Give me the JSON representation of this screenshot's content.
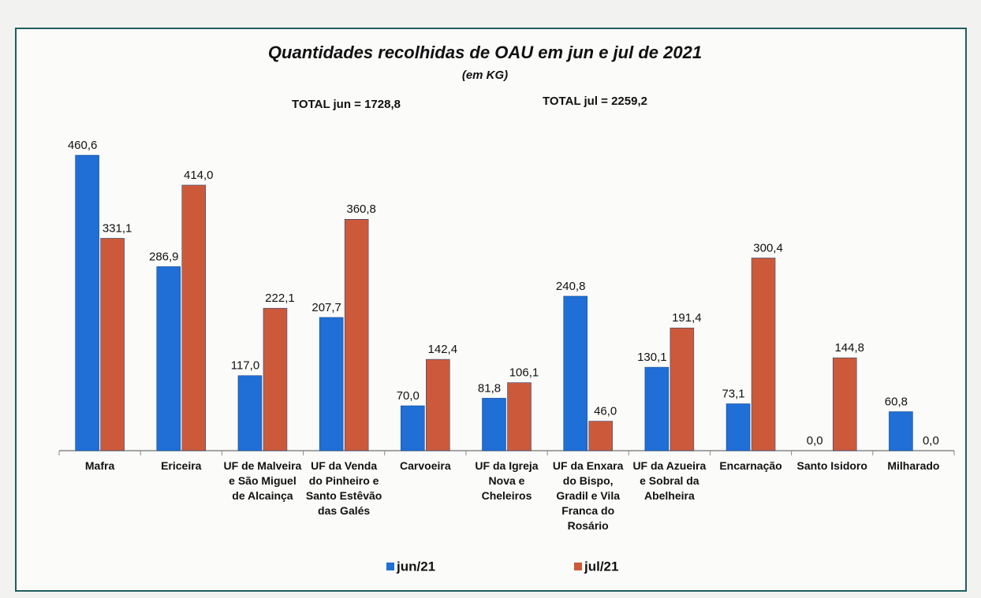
{
  "chart_data": {
    "type": "bar",
    "title": "Quantidades recolhidas de OAU em jun e jul de 2021",
    "subtitle": "(em KG)",
    "annotations": [
      "TOTAL jun = 1728,8",
      "TOTAL jul = 2259,2"
    ],
    "categories": [
      "Mafra",
      "Ericeira",
      "UF de Malveira e São Miguel de Alcainça",
      "UF da Venda do Pinheiro e Santo Estêvão das Galés",
      "Carvoeira",
      "UF da Igreja Nova e Cheleiros",
      "UF da Enxara do Bispo, Gradil e Vila Franca do Rosário",
      "UF da Azueira e Sobral da Abelheira",
      "Encarnação",
      "Santo Isidoro",
      "Milharado"
    ],
    "series": [
      {
        "name": "jun/21",
        "color": "#1f6fd6",
        "values": [
          460.6,
          286.9,
          117.0,
          207.7,
          70.0,
          81.8,
          240.8,
          130.1,
          73.1,
          0.0,
          60.8
        ],
        "value_labels": [
          "460,6",
          "286,9",
          "117,0",
          "207,7",
          "70,0",
          "81,8",
          "240,8",
          "130,1",
          "73,1",
          "0,0",
          "60,8"
        ]
      },
      {
        "name": "jul/21",
        "color": "#cc5a3a",
        "values": [
          331.1,
          414.0,
          222.1,
          360.8,
          142.4,
          106.1,
          46.0,
          191.4,
          300.4,
          144.8,
          0.0
        ],
        "value_labels": [
          "331,1",
          "414,0",
          "222,1",
          "360,8",
          "142,4",
          "106,1",
          "46,0",
          "191,4",
          "300,4",
          "144,8",
          "0,0"
        ]
      }
    ]
  }
}
